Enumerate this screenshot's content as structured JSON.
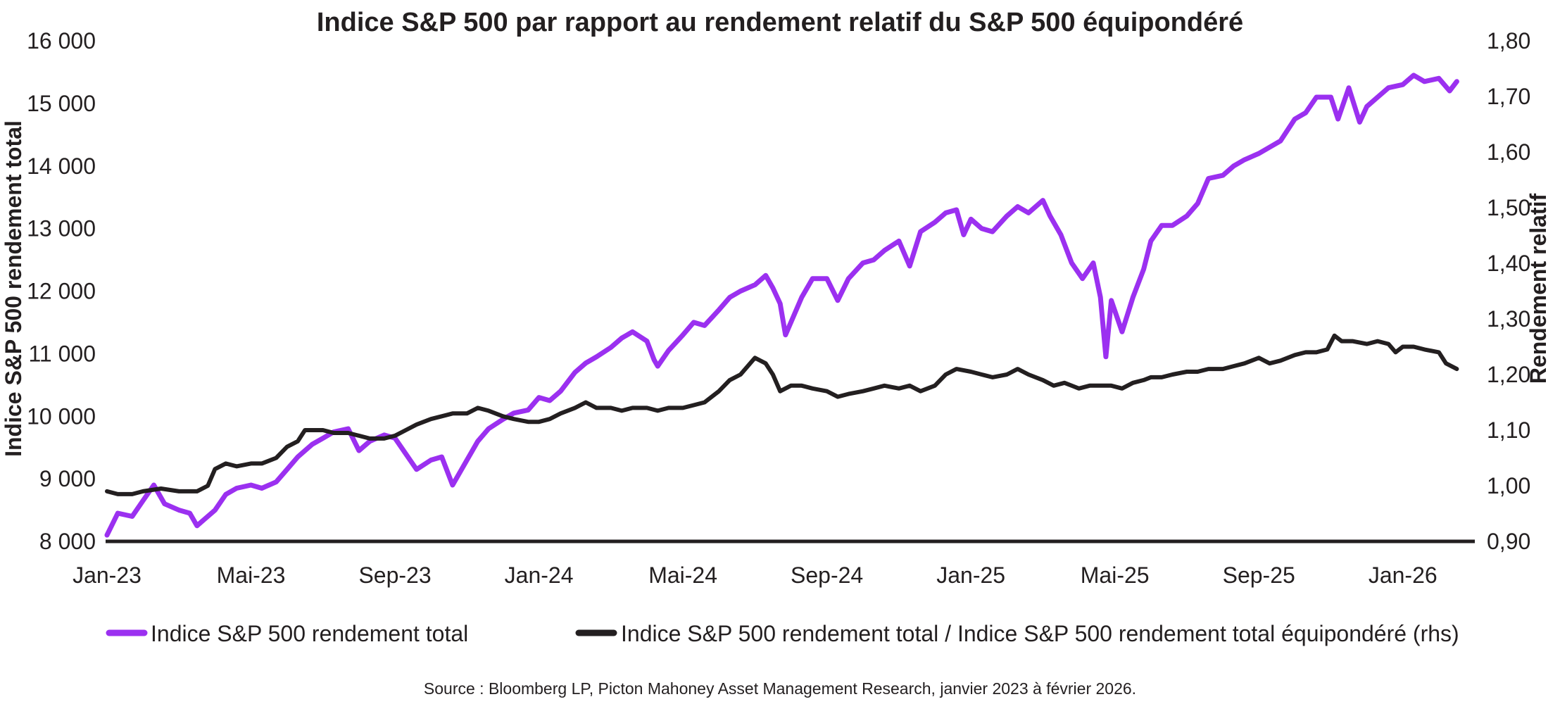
{
  "chart_data": {
    "type": "line",
    "title": "Indice S&P 500 par rapport au rendement relatif du S&P 500 équipondéré",
    "ylabel_left": "Indice S&P 500 rendement total",
    "ylabel_right": "Rendement relatif",
    "x_ticks": [
      "Jan-23",
      "Mai-23",
      "Sep-23",
      "Jan-24",
      "Mai-24",
      "Sep-24",
      "Jan-25",
      "Mai-25",
      "Sep-25",
      "Jan-26"
    ],
    "x_range_months": [
      0,
      38
    ],
    "y_left": {
      "lim": [
        8000,
        16000
      ],
      "ticks": [
        8000,
        9000,
        10000,
        11000,
        12000,
        13000,
        14000,
        15000,
        16000
      ],
      "tick_labels": [
        "8 000",
        "9 000",
        "10 000",
        "11 000",
        "12 000",
        "13 000",
        "14 000",
        "15 000",
        "16 000"
      ]
    },
    "y_right": {
      "lim": [
        0.9,
        1.8
      ],
      "ticks": [
        0.9,
        1.0,
        1.1,
        1.2,
        1.3,
        1.4,
        1.5,
        1.6,
        1.7,
        1.8
      ],
      "tick_labels": [
        "0,90",
        "1,00",
        "1,10",
        "1,20",
        "1,30",
        "1,40",
        "1,50",
        "1,60",
        "1,70",
        "1,80"
      ]
    },
    "series": [
      {
        "name": "Indice S&P 500 rendement total",
        "axis": "left",
        "color": "#9b30f0",
        "points": [
          [
            0.0,
            8100
          ],
          [
            0.3,
            8450
          ],
          [
            0.7,
            8400
          ],
          [
            1.0,
            8650
          ],
          [
            1.3,
            8900
          ],
          [
            1.6,
            8600
          ],
          [
            2.0,
            8500
          ],
          [
            2.3,
            8450
          ],
          [
            2.5,
            8250
          ],
          [
            2.7,
            8350
          ],
          [
            3.0,
            8500
          ],
          [
            3.3,
            8750
          ],
          [
            3.6,
            8850
          ],
          [
            4.0,
            8900
          ],
          [
            4.3,
            8850
          ],
          [
            4.7,
            8950
          ],
          [
            5.0,
            9150
          ],
          [
            5.3,
            9350
          ],
          [
            5.7,
            9550
          ],
          [
            6.0,
            9650
          ],
          [
            6.3,
            9750
          ],
          [
            6.7,
            9800
          ],
          [
            7.0,
            9450
          ],
          [
            7.3,
            9600
          ],
          [
            7.7,
            9700
          ],
          [
            8.0,
            9650
          ],
          [
            8.3,
            9400
          ],
          [
            8.6,
            9150
          ],
          [
            9.0,
            9300
          ],
          [
            9.3,
            9350
          ],
          [
            9.6,
            8900
          ],
          [
            10.0,
            9300
          ],
          [
            10.3,
            9600
          ],
          [
            10.6,
            9800
          ],
          [
            11.0,
            9950
          ],
          [
            11.3,
            10050
          ],
          [
            11.7,
            10100
          ],
          [
            12.0,
            10300
          ],
          [
            12.3,
            10250
          ],
          [
            12.6,
            10400
          ],
          [
            13.0,
            10700
          ],
          [
            13.3,
            10850
          ],
          [
            13.6,
            10950
          ],
          [
            14.0,
            11100
          ],
          [
            14.3,
            11250
          ],
          [
            14.6,
            11350
          ],
          [
            15.0,
            11200
          ],
          [
            15.2,
            10900
          ],
          [
            15.3,
            10800
          ],
          [
            15.6,
            11050
          ],
          [
            16.0,
            11300
          ],
          [
            16.3,
            11500
          ],
          [
            16.6,
            11450
          ],
          [
            17.0,
            11700
          ],
          [
            17.3,
            11900
          ],
          [
            17.6,
            12000
          ],
          [
            18.0,
            12100
          ],
          [
            18.3,
            12250
          ],
          [
            18.5,
            12050
          ],
          [
            18.7,
            11800
          ],
          [
            18.85,
            11300
          ],
          [
            19.0,
            11500
          ],
          [
            19.3,
            11900
          ],
          [
            19.6,
            12200
          ],
          [
            20.0,
            12200
          ],
          [
            20.3,
            11850
          ],
          [
            20.6,
            12200
          ],
          [
            21.0,
            12450
          ],
          [
            21.3,
            12500
          ],
          [
            21.6,
            12650
          ],
          [
            22.0,
            12800
          ],
          [
            22.3,
            12400
          ],
          [
            22.6,
            12950
          ],
          [
            23.0,
            13100
          ],
          [
            23.3,
            13250
          ],
          [
            23.6,
            13300
          ],
          [
            23.8,
            12900
          ],
          [
            24.0,
            13150
          ],
          [
            24.3,
            13000
          ],
          [
            24.6,
            12950
          ],
          [
            25.0,
            13200
          ],
          [
            25.3,
            13350
          ],
          [
            25.6,
            13250
          ],
          [
            26.0,
            13450
          ],
          [
            26.2,
            13200
          ],
          [
            26.5,
            12900
          ],
          [
            26.8,
            12450
          ],
          [
            27.1,
            12200
          ],
          [
            27.4,
            12450
          ],
          [
            27.6,
            11900
          ],
          [
            27.75,
            10950
          ],
          [
            27.9,
            11850
          ],
          [
            28.2,
            11350
          ],
          [
            28.5,
            11900
          ],
          [
            28.8,
            12350
          ],
          [
            29.0,
            12800
          ],
          [
            29.3,
            13050
          ],
          [
            29.6,
            13050
          ],
          [
            30.0,
            13200
          ],
          [
            30.3,
            13400
          ],
          [
            30.6,
            13800
          ],
          [
            31.0,
            13850
          ],
          [
            31.3,
            14000
          ],
          [
            31.6,
            14100
          ],
          [
            32.0,
            14200
          ],
          [
            32.3,
            14300
          ],
          [
            32.6,
            14400
          ],
          [
            33.0,
            14750
          ],
          [
            33.3,
            14850
          ],
          [
            33.6,
            15100
          ],
          [
            34.0,
            15100
          ],
          [
            34.2,
            14750
          ],
          [
            34.5,
            15250
          ],
          [
            34.8,
            14700
          ],
          [
            35.0,
            14950
          ],
          [
            35.3,
            15100
          ],
          [
            35.6,
            15250
          ],
          [
            36.0,
            15300
          ],
          [
            36.3,
            15450
          ],
          [
            36.6,
            15350
          ],
          [
            37.0,
            15400
          ],
          [
            37.3,
            15200
          ],
          [
            37.5,
            15350
          ]
        ]
      },
      {
        "name": "Indice S&P 500 rendement total / Indice S&P 500 rendement total équipondéré (rhs)",
        "axis": "right",
        "color": "#231f20",
        "points": [
          [
            0.0,
            0.99
          ],
          [
            0.3,
            0.985
          ],
          [
            0.7,
            0.985
          ],
          [
            1.0,
            0.99
          ],
          [
            1.5,
            0.995
          ],
          [
            2.0,
            0.99
          ],
          [
            2.5,
            0.99
          ],
          [
            2.8,
            1.0
          ],
          [
            3.0,
            1.03
          ],
          [
            3.3,
            1.04
          ],
          [
            3.6,
            1.035
          ],
          [
            4.0,
            1.04
          ],
          [
            4.3,
            1.04
          ],
          [
            4.7,
            1.05
          ],
          [
            5.0,
            1.07
          ],
          [
            5.3,
            1.08
          ],
          [
            5.5,
            1.1
          ],
          [
            5.8,
            1.1
          ],
          [
            6.0,
            1.1
          ],
          [
            6.3,
            1.095
          ],
          [
            6.7,
            1.095
          ],
          [
            7.0,
            1.09
          ],
          [
            7.3,
            1.085
          ],
          [
            7.7,
            1.085
          ],
          [
            8.0,
            1.09
          ],
          [
            8.3,
            1.1
          ],
          [
            8.6,
            1.11
          ],
          [
            9.0,
            1.12
          ],
          [
            9.3,
            1.125
          ],
          [
            9.6,
            1.13
          ],
          [
            10.0,
            1.13
          ],
          [
            10.3,
            1.14
          ],
          [
            10.6,
            1.135
          ],
          [
            11.0,
            1.125
          ],
          [
            11.3,
            1.12
          ],
          [
            11.7,
            1.115
          ],
          [
            12.0,
            1.115
          ],
          [
            12.3,
            1.12
          ],
          [
            12.6,
            1.13
          ],
          [
            13.0,
            1.14
          ],
          [
            13.3,
            1.15
          ],
          [
            13.6,
            1.14
          ],
          [
            14.0,
            1.14
          ],
          [
            14.3,
            1.135
          ],
          [
            14.6,
            1.14
          ],
          [
            15.0,
            1.14
          ],
          [
            15.3,
            1.135
          ],
          [
            15.6,
            1.14
          ],
          [
            16.0,
            1.14
          ],
          [
            16.3,
            1.145
          ],
          [
            16.6,
            1.15
          ],
          [
            17.0,
            1.17
          ],
          [
            17.3,
            1.19
          ],
          [
            17.6,
            1.2
          ],
          [
            18.0,
            1.23
          ],
          [
            18.3,
            1.22
          ],
          [
            18.5,
            1.2
          ],
          [
            18.7,
            1.17
          ],
          [
            19.0,
            1.18
          ],
          [
            19.3,
            1.18
          ],
          [
            19.6,
            1.175
          ],
          [
            20.0,
            1.17
          ],
          [
            20.3,
            1.16
          ],
          [
            20.6,
            1.165
          ],
          [
            21.0,
            1.17
          ],
          [
            21.3,
            1.175
          ],
          [
            21.6,
            1.18
          ],
          [
            22.0,
            1.175
          ],
          [
            22.3,
            1.18
          ],
          [
            22.6,
            1.17
          ],
          [
            23.0,
            1.18
          ],
          [
            23.3,
            1.2
          ],
          [
            23.6,
            1.21
          ],
          [
            24.0,
            1.205
          ],
          [
            24.3,
            1.2
          ],
          [
            24.6,
            1.195
          ],
          [
            25.0,
            1.2
          ],
          [
            25.3,
            1.21
          ],
          [
            25.6,
            1.2
          ],
          [
            26.0,
            1.19
          ],
          [
            26.3,
            1.18
          ],
          [
            26.6,
            1.185
          ],
          [
            27.0,
            1.175
          ],
          [
            27.3,
            1.18
          ],
          [
            27.6,
            1.18
          ],
          [
            27.9,
            1.18
          ],
          [
            28.2,
            1.175
          ],
          [
            28.5,
            1.185
          ],
          [
            28.8,
            1.19
          ],
          [
            29.0,
            1.195
          ],
          [
            29.3,
            1.195
          ],
          [
            29.6,
            1.2
          ],
          [
            30.0,
            1.205
          ],
          [
            30.3,
            1.205
          ],
          [
            30.6,
            1.21
          ],
          [
            31.0,
            1.21
          ],
          [
            31.3,
            1.215
          ],
          [
            31.6,
            1.22
          ],
          [
            32.0,
            1.23
          ],
          [
            32.3,
            1.22
          ],
          [
            32.6,
            1.225
          ],
          [
            33.0,
            1.235
          ],
          [
            33.3,
            1.24
          ],
          [
            33.6,
            1.24
          ],
          [
            33.9,
            1.245
          ],
          [
            34.1,
            1.27
          ],
          [
            34.3,
            1.26
          ],
          [
            34.6,
            1.26
          ],
          [
            35.0,
            1.255
          ],
          [
            35.3,
            1.26
          ],
          [
            35.6,
            1.255
          ],
          [
            35.8,
            1.24
          ],
          [
            36.0,
            1.25
          ],
          [
            36.3,
            1.25
          ],
          [
            36.6,
            1.245
          ],
          [
            37.0,
            1.24
          ],
          [
            37.2,
            1.22
          ],
          [
            37.5,
            1.21
          ]
        ]
      }
    ],
    "legend_position": "bottom"
  },
  "source": "Source : Bloomberg LP, Picton Mahoney Asset Management Research, janvier 2023 à février 2026."
}
